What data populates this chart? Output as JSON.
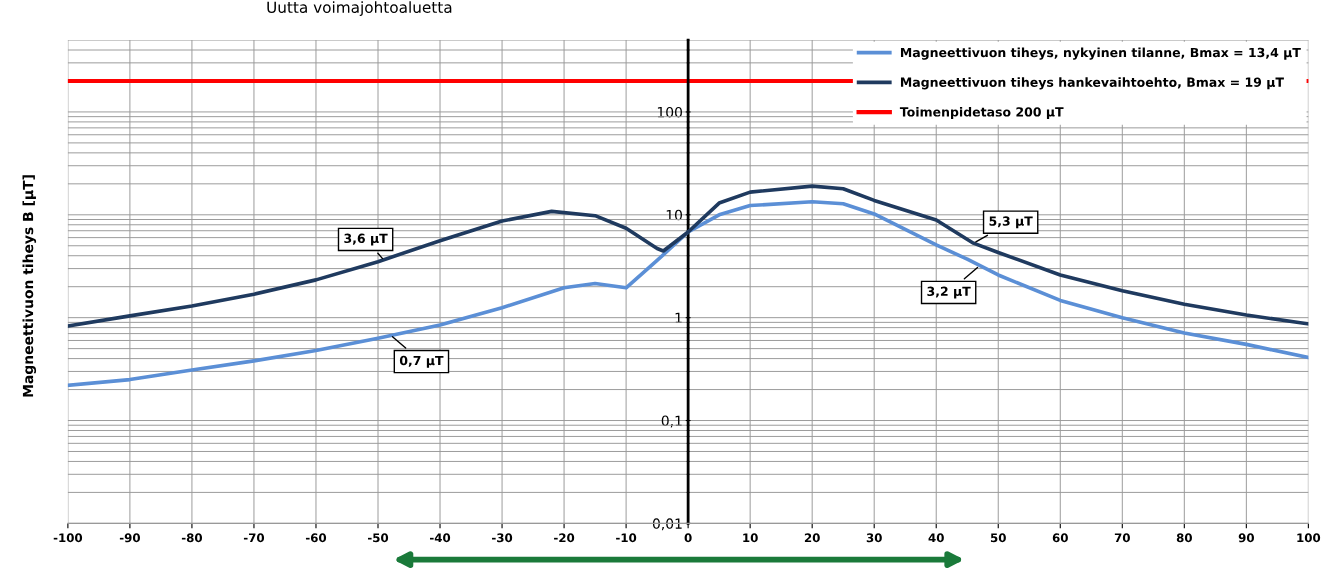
{
  "chart_data": {
    "type": "line",
    "title": "Uutta voimajohtoaluetta",
    "ylabel": "Magneettivuon tiheys B [µT]",
    "x": [
      -100,
      -90,
      -80,
      -70,
      -60,
      -50,
      -40,
      -30,
      -22,
      -15,
      -10,
      -5,
      -4,
      0,
      5,
      10,
      20,
      25,
      30,
      40,
      46,
      50,
      60,
      70,
      80,
      90,
      100
    ],
    "series": [
      {
        "name": "Magneettivuon tiheys, nykyinen tilanne, Bmax = 13,4 µT",
        "color": "#5b8fd6",
        "x": [
          -100,
          -90,
          -80,
          -70,
          -60,
          -50,
          -40,
          -30,
          -20,
          -15,
          -10,
          -5,
          0,
          5,
          10,
          20,
          25,
          30,
          40,
          45,
          50,
          60,
          70,
          80,
          90,
          100
        ],
        "values": [
          0.22,
          0.25,
          0.31,
          0.38,
          0.48,
          0.63,
          0.85,
          1.25,
          1.95,
          2.15,
          1.95,
          3.6,
          6.8,
          10,
          12.3,
          13.4,
          12.8,
          10.2,
          5.1,
          3.7,
          2.6,
          1.47,
          1.0,
          0.71,
          0.55,
          0.41
        ]
      },
      {
        "name": "Magneettivuon tiheys hankevaihtoehto, Bmax = 19 µT",
        "color": "#1f3a5f",
        "values": [
          0.83,
          1.04,
          1.3,
          1.69,
          2.33,
          3.5,
          5.6,
          8.7,
          10.8,
          9.8,
          7.4,
          4.7,
          4.45,
          6.8,
          13,
          16.6,
          19,
          17.9,
          13.8,
          8.9,
          5.3,
          4.3,
          2.6,
          1.83,
          1.35,
          1.06,
          0.87
        ]
      }
    ],
    "ref_lines": [
      {
        "axis": "y",
        "value": 200,
        "label": "Toimenpidetaso 200 µT",
        "color": "#ff0000",
        "line_style": "solid"
      }
    ],
    "annotations": [
      {
        "text": "3,6 µT",
        "x": -49,
        "y": 3.6
      },
      {
        "text": "0,7 µT",
        "x": -48,
        "y": 0.68
      },
      {
        "text": "5,3 µT",
        "x": 46,
        "y": 5.3
      },
      {
        "text": "3,2 µT",
        "x": 47,
        "y": 3.2
      }
    ],
    "log": "y",
    "xlim": [
      -100,
      100
    ],
    "ylim": [
      0.01,
      500
    ],
    "xticks": [
      -100,
      -90,
      -80,
      -70,
      -60,
      -50,
      -40,
      -30,
      -20,
      -10,
      0,
      10,
      20,
      30,
      40,
      50,
      60,
      70,
      80,
      90,
      100
    ],
    "yticks": [
      {
        "value": 0.01,
        "label": "0,01"
      },
      {
        "value": 0.1,
        "label": "0,1"
      },
      1,
      10,
      100
    ],
    "grid": true,
    "legend": "top right",
    "marker": "none",
    "line_style": "solid"
  }
}
